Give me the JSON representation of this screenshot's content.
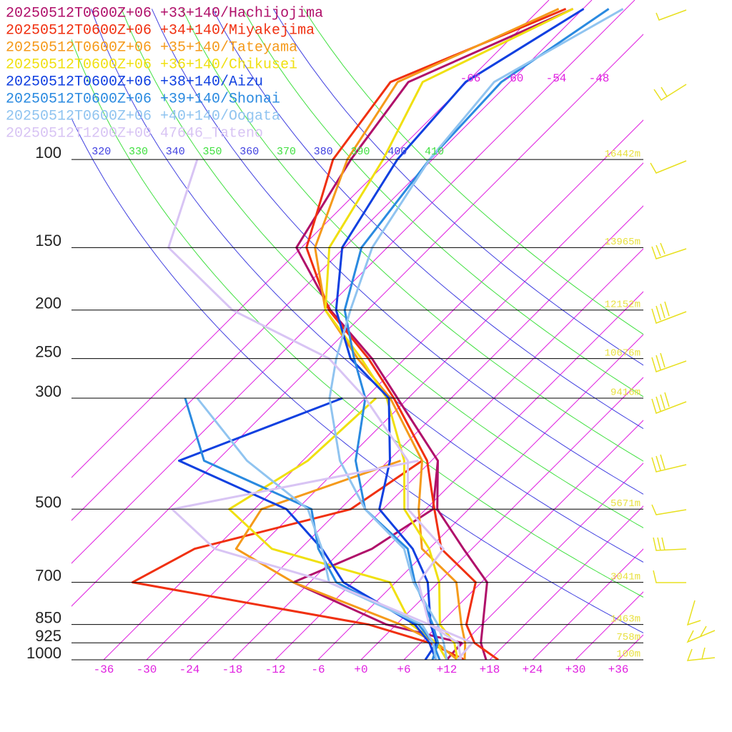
{
  "chart_data": {
    "type": "skewt",
    "yscale": "log",
    "ylim": [
      1000,
      48
    ],
    "xlim": [
      -40.5,
      39.5
    ],
    "yticks": [
      100,
      150,
      200,
      250,
      300,
      500,
      700,
      850,
      925,
      1000
    ],
    "xticks": [
      -36,
      -30,
      -24,
      -18,
      -12,
      -6,
      {
        "value": 0,
        "label": "+0"
      },
      {
        "value": 6,
        "label": "+6"
      },
      {
        "value": 12,
        "label": "+12"
      },
      {
        "value": 18,
        "label": "+18"
      },
      {
        "value": 24,
        "label": "+24"
      },
      {
        "value": 30,
        "label": "+30"
      },
      {
        "value": 36,
        "label": "+36"
      }
    ],
    "top_xticks": [
      -66,
      -60,
      -54,
      -48
    ],
    "isotherm_color": "#e020e0",
    "adiabats": [
      320,
      330,
      340,
      350,
      360,
      370,
      380,
      390,
      400,
      410
    ],
    "adiabat_colors": [
      "#4040e0",
      "#40e040"
    ],
    "heights": [
      {
        "pressure": 100,
        "label": "16442m"
      },
      {
        "pressure": 150,
        "label": "13965m"
      },
      {
        "pressure": 200,
        "label": "12152m"
      },
      {
        "pressure": 250,
        "label": "10676m"
      },
      {
        "pressure": 300,
        "label": "9416m"
      },
      {
        "pressure": 500,
        "label": "5671m"
      },
      {
        "pressure": 700,
        "label": "3041m"
      },
      {
        "pressure": 850,
        "label": "1463m"
      },
      {
        "pressure": 925,
        "label": "758m"
      },
      {
        "pressure": 1000,
        "label": "100m"
      }
    ],
    "height_color": "#e8e040",
    "pressure": [
      1000,
      925,
      850,
      700,
      600,
      500,
      400,
      300,
      250,
      200,
      150,
      100,
      70,
      50
    ],
    "series": [
      {
        "name": "20250512T0600Z+06 +33+140/Hachijojima",
        "color": "#b0106a",
        "temperature": [
          17.5,
          14.4,
          12.1,
          6.8,
          -1.2,
          -10.4,
          -17.1,
          -31.5,
          -40.6,
          -53.2,
          -66.7,
          -71.4,
          -74.2,
          -61.4
        ],
        "dewpoint": [
          12,
          11.7,
          -1.4,
          -20.3,
          -14,
          -11,
          -17.1,
          null,
          null,
          null,
          null,
          null,
          null,
          null
        ]
      },
      {
        "name": "20250512T0600Z+06 +34+140/Miyakejima",
        "color": "#f03010",
        "temperature": [
          19.2,
          13.5,
          9.8,
          5.2,
          -4.3,
          -10.8,
          -18.6,
          -32,
          -41.1,
          -53.4,
          -65.3,
          -73.9,
          -76.7,
          -62.4
        ],
        "dewpoint": [
          14.5,
          7.2,
          -3.9,
          -42.8,
          -38.8,
          -22.5,
          -19.3,
          null,
          null,
          null,
          null,
          null,
          null,
          null
        ]
      },
      {
        "name": "20250512T0600Z+06 +35+140/Tateyama",
        "color": "#f59a1a",
        "temperature": [
          14.5,
          12.2,
          9.1,
          2.5,
          -7,
          -13,
          -19.3,
          -32.5,
          -42.6,
          -53.9,
          -64.1,
          -71.9,
          -75.7,
          -63.4
        ],
        "dewpoint": [
          13.5,
          8.2,
          0.6,
          -20.3,
          -33,
          -35,
          -22.3,
          null,
          null,
          null,
          null,
          null,
          null,
          null
        ]
      },
      {
        "name": "20250512T0600Z+06 +36+140/Chikusei",
        "color": "#f0e010",
        "temperature": [
          13.5,
          10.7,
          6.1,
          0.1,
          -6,
          -15,
          -21.8,
          -33,
          -42.1,
          -53.9,
          -62.1,
          -66.9,
          -72.2,
          -61.4
        ],
        "dewpoint": [
          12,
          8.2,
          2.1,
          -6.8,
          -28,
          -39.5,
          -35.3,
          -34.5,
          null,
          null,
          null,
          null,
          null,
          null
        ]
      },
      {
        "name": "20250512T0600Z+06 +38+140/Aizu",
        "color": "#1040e0",
        "temperature": [
          9,
          8.2,
          4.8,
          -1.5,
          -8.3,
          -18.5,
          -23.8,
          -32.7,
          -43.6,
          -52.4,
          -60.3,
          -64.9,
          -66.2,
          -59.9
        ],
        "dewpoint": [
          10.5,
          7.2,
          2.6,
          -13.3,
          -21,
          -31.5,
          -53.3,
          -39.2,
          null,
          null,
          null,
          null,
          null,
          null
        ]
      },
      {
        "name": "20250512T0600Z+06 +39+140/Shonai",
        "color": "#2a8ae0",
        "temperature": [
          10,
          8.4,
          5.1,
          -3.3,
          -9,
          -20.5,
          -28.6,
          -36,
          -43.1,
          -51.2,
          -57.6,
          -60.4,
          -61.2,
          -56.4
        ],
        "dewpoint": [
          11,
          7.7,
          3.1,
          -14.3,
          -21.5,
          -28,
          -49.8,
          -61.2,
          null,
          null,
          null,
          null,
          null,
          null
        ]
      },
      {
        "name": "20250512T0600Z+06 +40+140/Oogata",
        "color": "#90c4f0",
        "temperature": [
          12,
          9.2,
          5.8,
          -3.5,
          -9.5,
          -20.5,
          -30.8,
          -41,
          -45.6,
          -50.4,
          -56.1,
          -60.4,
          -62.2,
          -54.4
        ],
        "dewpoint": [
          10.5,
          7.7,
          3.6,
          -15.3,
          -21,
          -28.5,
          -43.8,
          -59.5,
          null,
          null,
          null,
          null,
          null,
          null
        ]
      },
      {
        "name": "20250512T1200Z+00 47646_Tateno",
        "color": "#d8c4f4",
        "temperature": [
          13.5,
          13.2,
          4.6,
          -2.8,
          -4,
          -14.5,
          -21.3,
          -36,
          -46.6,
          -66.9,
          -84.6,
          -92.9,
          null,
          null
        ],
        "dewpoint": [
          14,
          11.2,
          4.6,
          -15.3,
          -36,
          -47.5,
          -19.8,
          null,
          null,
          null,
          null,
          null,
          null,
          null
        ]
      }
    ]
  }
}
